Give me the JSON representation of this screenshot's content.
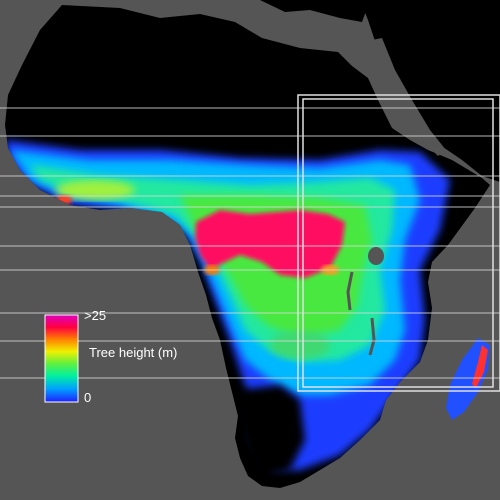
{
  "legend": {
    "title": "Tree height (m)",
    "max_label": ">25",
    "min_label": "0",
    "color_stops": [
      "#e000c0",
      "#ff0040",
      "#ff8000",
      "#f0f000",
      "#60f040",
      "#00f0a0",
      "#00a0ff",
      "#2020ff"
    ]
  },
  "colors": {
    "background": "#555555",
    "land_no_trees": "#000000",
    "tall_forest": "#ff1060",
    "medium_forest": "#40e060",
    "short_trees": "#0090ff",
    "sparse_trees": "#2040ff",
    "overlay_lines": "#d8d8d8"
  }
}
